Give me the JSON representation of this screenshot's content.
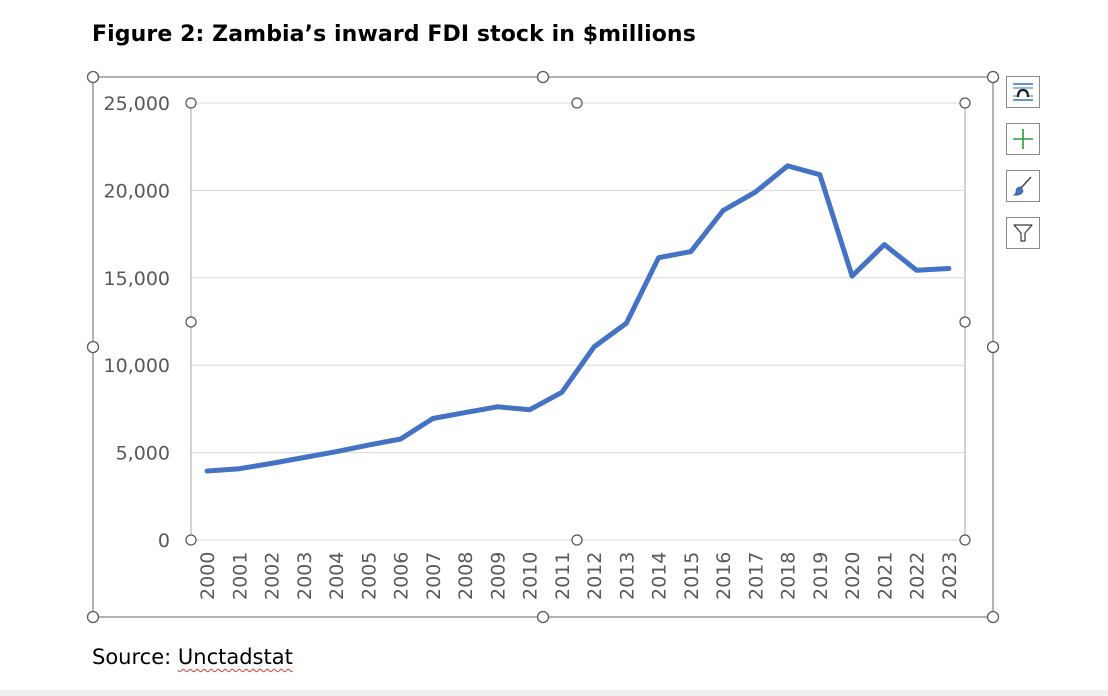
{
  "figure": {
    "title": "Figure 2: Zambia’s inward FDI stock in $millions",
    "source_label": "Source: ",
    "source_name": "Unctadstat"
  },
  "chart_data": {
    "type": "line",
    "title": "",
    "xlabel": "",
    "ylabel": "",
    "x": [
      "2000",
      "2001",
      "2002",
      "2003",
      "2004",
      "2005",
      "2006",
      "2007",
      "2008",
      "2009",
      "2010",
      "2011",
      "2012",
      "2013",
      "2014",
      "2015",
      "2016",
      "2017",
      "2018",
      "2019",
      "2020",
      "2021",
      "2022",
      "2023"
    ],
    "series": [
      {
        "values": [
          3950,
          4080,
          4380,
          4720,
          5050,
          5430,
          5780,
          6950,
          7290,
          7620,
          7450,
          8450,
          11050,
          12400,
          16150,
          16500,
          18850,
          19900,
          21400,
          20900,
          15100,
          16900,
          15430,
          15530
        ],
        "color": "#4472c4"
      }
    ],
    "y_ticks": [
      0,
      5000,
      10000,
      15000,
      20000,
      25000
    ],
    "y_tick_labels": [
      "0",
      "5,000",
      "10,000",
      "15,000",
      "20,000",
      "25,000"
    ],
    "ylim": [
      0,
      25000
    ],
    "grid": true,
    "legend": "none",
    "colors": {
      "line": "#4472c4",
      "gridline": "#d9d9d9",
      "axis_text": "#595959",
      "selection_border": "#808080"
    }
  },
  "side_buttons": [
    {
      "name": "layout-options",
      "icon": "layout-options-icon"
    },
    {
      "name": "chart-elements",
      "icon": "plus-icon"
    },
    {
      "name": "chart-styles",
      "icon": "paintbrush-icon"
    },
    {
      "name": "chart-filters",
      "icon": "filter-icon"
    }
  ]
}
